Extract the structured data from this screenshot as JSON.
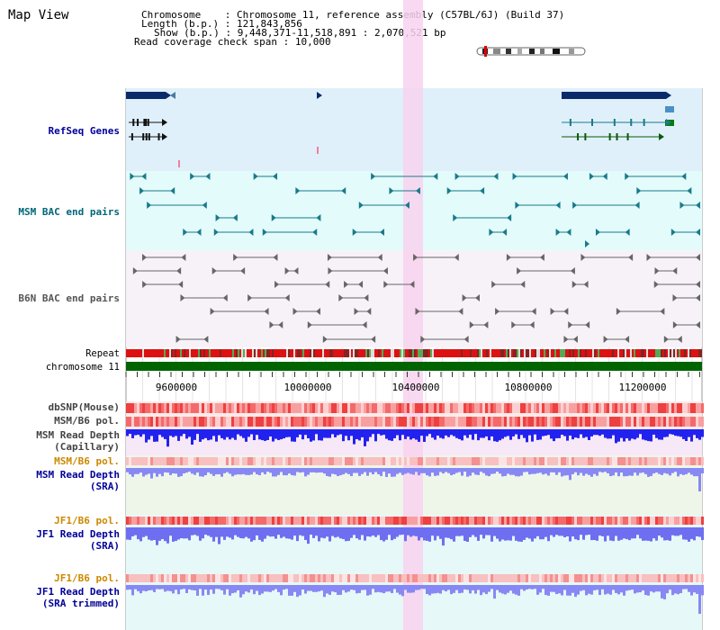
{
  "app": {
    "title": "Map View"
  },
  "header": {
    "chromosome_label": "Chromosome",
    "chromosome_value": "Chromosome 11, reference assembly (C57BL/6J) (Build 37)",
    "length_label": "Length (b.p.)",
    "length_value": "121,843,856",
    "show_label": "Show (b.p.)",
    "show_value": "9,448,371-11,518,891 : 2,070,521 bp",
    "coverage_label": "Read coverage check span",
    "coverage_value": "10,000"
  },
  "tracks": {
    "refseq": "RefSeq Genes",
    "msm_bac": "MSM BAC end pairs",
    "b6n_bac": "B6N BAC end pairs",
    "repeat": "Repeat",
    "chromosome": "chromosome 11",
    "dbsnp": "dbSNP(Mouse)",
    "msm_b6_pol_1": "MSM/B6 pol.",
    "msm_read_depth_cap_1": "MSM Read Depth",
    "msm_read_depth_cap_2": "(Capillary)",
    "msm_b6_pol_2": "MSM/B6 pol.",
    "msm_read_depth_sra_1": "MSM Read Depth",
    "msm_read_depth_sra_2": "(SRA)",
    "jf1_b6_pol_1": "JF1/B6 pol.",
    "jf1_read_depth_sra_1": "JF1 Read Depth",
    "jf1_read_depth_sra_2": "(SRA)",
    "jf1_b6_pol_2": "JF1/B6 pol.",
    "jf1_read_depth_trim_1": "JF1 Read Depth",
    "jf1_read_depth_trim_2": "(SRA trimmed)"
  },
  "axis": {
    "ticks": [
      "9600000",
      "10000000",
      "10400000",
      "10800000",
      "11200000"
    ]
  },
  "colors": {
    "refseq_bg": "#dff0fa",
    "msm_bg": "#e3fbfb",
    "b6n_bg": "#f7f2f8",
    "highlight": "#f8d2ee",
    "chromosome_bar": "#006400",
    "refseq_gene": "#0a2a6a",
    "msm_pair": "#1a7a8a",
    "b6n_pair": "#666666",
    "depth_blue": "#2222ee",
    "depth_light": "#8888f4",
    "label_blue": "#000099",
    "label_teal": "#006677",
    "label_orange": "#cc8800"
  }
}
